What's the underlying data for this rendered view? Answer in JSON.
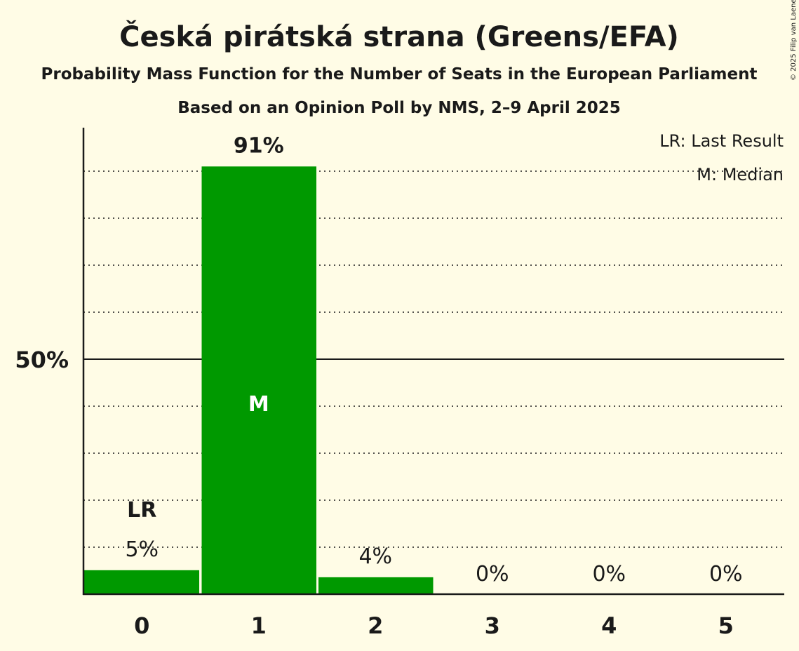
{
  "chart_data": {
    "type": "bar",
    "title": "Česká pirátská strana (Greens/EFA)",
    "subtitle": "Probability Mass Function for the Number of Seats in the European Parliament",
    "subtitle2": "Based on an Opinion Poll by NMS, 2–9 April 2025",
    "categories": [
      "0",
      "1",
      "2",
      "3",
      "4",
      "5"
    ],
    "values": [
      5.1,
      91,
      3.6,
      0,
      0,
      0
    ],
    "value_labels": [
      "5%",
      "91%",
      "4%",
      "0%",
      "0%",
      "0%"
    ],
    "ylim": [
      0,
      100
    ],
    "yticks": [
      {
        "value": 50,
        "label": "50%"
      }
    ],
    "grid_step": 10,
    "last_result_index": 0,
    "median_index": 1,
    "last_result_marker": "LR",
    "median_marker": "M",
    "legend": [
      "LR: Last Result",
      "M: Median"
    ],
    "legend_position": "top-right",
    "copyright": "© 2025 Filip van Laenen",
    "colors": {
      "bar": "#009900",
      "background": "#FFFCE6",
      "text": "#1a1a1a"
    }
  }
}
